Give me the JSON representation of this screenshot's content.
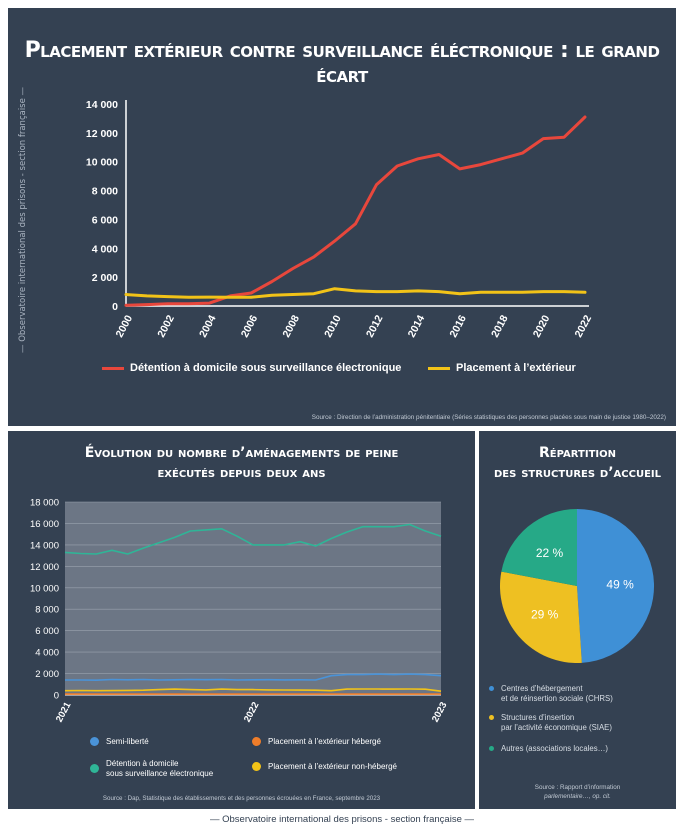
{
  "title": "Placement extérieur contre surveillance éléctronique : le grand écart",
  "side_label": "— Observatoire international des prisons - section française —",
  "footer": "— Observatoire international des prisons - section française —",
  "colors": {
    "panel": "#344152",
    "red": "#e8473c",
    "yellow": "#f2c318",
    "blue": "#4a93d8",
    "orange": "#ee7d2a",
    "teal": "#2fb597",
    "pie_blue": "#3f90d6",
    "pie_yellow": "#eec022",
    "pie_teal": "#26a987"
  },
  "chart_top": {
    "legend": [
      "Détention à domicile sous surveillance électronique",
      "Placement à l’extérieur"
    ],
    "source": "Source : Direction de l’administration pénitentiaire (Séries statistiques des personnes placées sous main de justice 1980–2022)"
  },
  "chart_bl": {
    "title_line1": "Évolution du nombre d’aménagements de peine",
    "title_line2": "exécutés depuis deux ans",
    "legend": [
      "Semi-liberté",
      "Placement à l’extérieur hébergé",
      "Détention à domicile",
      "sous surveillance électronique",
      "Placement à l’extérieur non-hébergé"
    ],
    "source": "Source : Dap, Statistique des établissements et des personnes écrouées en France, septembre 2023"
  },
  "chart_br": {
    "title_line1": "Répartition",
    "title_line2": "des structures d’accueil",
    "legend": [
      {
        "l1": "Centres d’hébergement",
        "l2": "et de réinsertion sociale (CHRS)"
      },
      {
        "l1": "Structures d’insertion",
        "l2": "par l’activité économique (SIAE)"
      },
      {
        "l1": "Autres (associations locales…)",
        "l2": ""
      }
    ],
    "source_l1": "Source : Rapport d’information",
    "source_l2": "parlementaire…, op. cit."
  },
  "chart_data": [
    {
      "type": "line",
      "x": [
        2000,
        2001,
        2002,
        2003,
        2004,
        2005,
        2006,
        2007,
        2008,
        2009,
        2010,
        2011,
        2012,
        2013,
        2014,
        2015,
        2016,
        2017,
        2018,
        2019,
        2020,
        2021,
        2022
      ],
      "x_ticks": [
        "2000",
        "2002",
        "2004",
        "2006",
        "2008",
        "2010",
        "2012",
        "2014",
        "2016",
        "2018",
        "2020",
        "2022"
      ],
      "y_ticks": [
        "0",
        "2 000",
        "4 000",
        "6 000",
        "8 000",
        "10 000",
        "12 000",
        "14 000"
      ],
      "ylim": [
        0,
        14000
      ],
      "series": [
        {
          "name": "Détention à domicile sous surveillance électronique",
          "color": "#e8473c",
          "values": [
            50,
            100,
            150,
            150,
            200,
            700,
            900,
            1700,
            2600,
            3400,
            4500,
            5700,
            8400,
            9700,
            10200,
            10500,
            9500,
            9800,
            10200,
            10600,
            11600,
            11700,
            13100
          ]
        },
        {
          "name": "Placement à l’extérieur",
          "color": "#f2c318",
          "values": [
            800,
            700,
            650,
            600,
            620,
            600,
            600,
            750,
            800,
            850,
            1200,
            1050,
            1000,
            1000,
            1050,
            1000,
            850,
            950,
            950,
            950,
            1000,
            1000,
            950
          ]
        }
      ]
    },
    {
      "type": "line",
      "x_ticks": [
        "2021",
        "2022",
        "2023"
      ],
      "y_ticks": [
        "0",
        "2 000",
        "4 000",
        "6 000",
        "8 000",
        "10 000",
        "12 000",
        "14 000",
        "16 000",
        "18 000"
      ],
      "ylim": [
        0,
        18000
      ],
      "grid": true,
      "series": [
        {
          "name": "Détention à domicile sous surveillance électronique",
          "color": "#2fb597",
          "values": [
            13300,
            13200,
            13150,
            13500,
            13150,
            13700,
            14200,
            14700,
            15300,
            15400,
            15500,
            14800,
            14000,
            14000,
            14000,
            14300,
            13900,
            14600,
            15200,
            15700,
            15700,
            15700,
            15900,
            15300,
            14800
          ]
        },
        {
          "name": "Semi-liberté",
          "color": "#4a93d8",
          "values": [
            1400,
            1400,
            1380,
            1450,
            1420,
            1450,
            1400,
            1420,
            1450,
            1430,
            1450,
            1400,
            1420,
            1430,
            1410,
            1420,
            1400,
            1800,
            1900,
            1900,
            1950,
            1900,
            1950,
            1900,
            1800
          ]
        },
        {
          "name": "Placement à l’extérieur non-hébergé",
          "color": "#f2c318",
          "values": [
            400,
            420,
            400,
            410,
            430,
            450,
            500,
            550,
            500,
            480,
            550,
            500,
            500,
            480,
            470,
            460,
            450,
            400,
            550,
            560,
            560,
            550,
            560,
            540,
            350
          ]
        },
        {
          "name": "Placement à l’extérieur hébergé",
          "color": "#ee7d2a",
          "values": [
            80,
            80,
            80,
            80,
            80,
            80,
            80,
            80,
            80,
            80,
            80,
            80,
            80,
            80,
            80,
            80,
            80,
            80,
            80,
            80,
            80,
            80,
            80,
            80,
            80
          ]
        }
      ]
    },
    {
      "type": "pie",
      "slices": [
        {
          "label": "Centres d’hébergement et de réinsertion sociale (CHRS)",
          "value": 49,
          "text": "49 %",
          "color": "#3f90d6"
        },
        {
          "label": "Structures d’insertion par l’activité économique (SIAE)",
          "value": 29,
          "text": "29 %",
          "color": "#eec022"
        },
        {
          "label": "Autres (associations locales…)",
          "value": 22,
          "text": "22 %",
          "color": "#26a987"
        }
      ]
    }
  ]
}
